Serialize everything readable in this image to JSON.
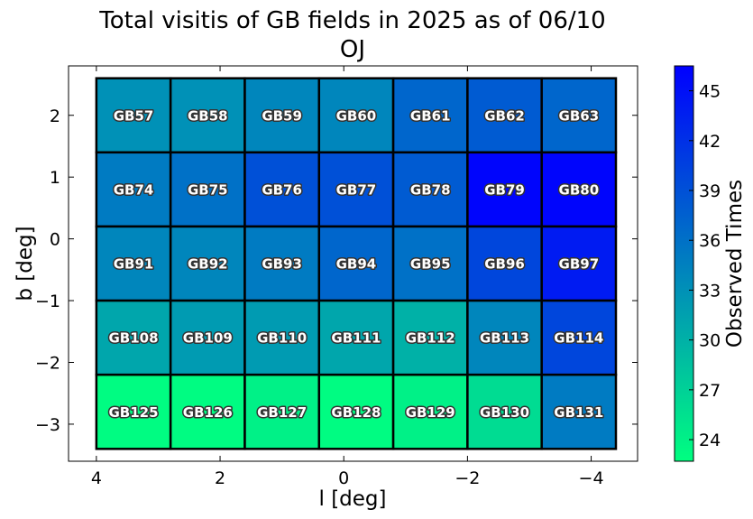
{
  "chart_data": {
    "type": "heatmap",
    "title": "Total visitis of GB fields in 2025 as of 06/10",
    "subtitle": "OJ",
    "xlabel": "l [deg]",
    "ylabel": "b [deg]",
    "xlim": [
      4.45,
      -4.75
    ],
    "ylim": [
      -3.6,
      2.8
    ],
    "x_ticks": [
      4,
      2,
      0,
      -2,
      -4
    ],
    "x_tick_labels": [
      "4",
      "2",
      "0",
      "−2",
      "−4"
    ],
    "y_ticks": [
      2,
      1,
      0,
      -1,
      -2,
      -3
    ],
    "y_tick_labels": [
      "2",
      "1",
      "0",
      "−1",
      "−2",
      "−3"
    ],
    "field_size_deg": [
      1.2,
      1.2
    ],
    "cells": [
      {
        "name": "GB57",
        "l": 3.4,
        "b": 2.0,
        "value": 33
      },
      {
        "name": "GB58",
        "l": 2.2,
        "b": 2.0,
        "value": 33
      },
      {
        "name": "GB59",
        "l": 1.0,
        "b": 2.0,
        "value": 34
      },
      {
        "name": "GB60",
        "l": -0.2,
        "b": 2.0,
        "value": 34
      },
      {
        "name": "GB61",
        "l": -1.4,
        "b": 2.0,
        "value": 37
      },
      {
        "name": "GB62",
        "l": -2.6,
        "b": 2.0,
        "value": 38
      },
      {
        "name": "GB63",
        "l": -3.8,
        "b": 2.0,
        "value": 37
      },
      {
        "name": "GB74",
        "l": 3.4,
        "b": 0.8,
        "value": 35
      },
      {
        "name": "GB75",
        "l": 2.2,
        "b": 0.8,
        "value": 36
      },
      {
        "name": "GB76",
        "l": 1.0,
        "b": 0.8,
        "value": 39
      },
      {
        "name": "GB77",
        "l": -0.2,
        "b": 0.8,
        "value": 39
      },
      {
        "name": "GB78",
        "l": -1.4,
        "b": 0.8,
        "value": 38
      },
      {
        "name": "GB79",
        "l": -2.6,
        "b": 0.8,
        "value": 46
      },
      {
        "name": "GB80",
        "l": -3.8,
        "b": 0.8,
        "value": 46
      },
      {
        "name": "GB91",
        "l": 3.4,
        "b": -0.4,
        "value": 34
      },
      {
        "name": "GB92",
        "l": 2.2,
        "b": -0.4,
        "value": 34
      },
      {
        "name": "GB93",
        "l": 1.0,
        "b": -0.4,
        "value": 35
      },
      {
        "name": "GB94",
        "l": -0.2,
        "b": -0.4,
        "value": 37
      },
      {
        "name": "GB95",
        "l": -1.4,
        "b": -0.4,
        "value": 36
      },
      {
        "name": "GB96",
        "l": -2.6,
        "b": -0.4,
        "value": 40
      },
      {
        "name": "GB97",
        "l": -3.8,
        "b": -0.4,
        "value": 44
      },
      {
        "name": "GB108",
        "l": 3.4,
        "b": -1.6,
        "value": 31
      },
      {
        "name": "GB109",
        "l": 2.2,
        "b": -1.6,
        "value": 32
      },
      {
        "name": "GB110",
        "l": 1.0,
        "b": -1.6,
        "value": 32
      },
      {
        "name": "GB111",
        "l": -0.2,
        "b": -1.6,
        "value": 31
      },
      {
        "name": "GB112",
        "l": -1.4,
        "b": -1.6,
        "value": 30
      },
      {
        "name": "GB113",
        "l": -2.6,
        "b": -1.6,
        "value": 34
      },
      {
        "name": "GB114",
        "l": -3.8,
        "b": -1.6,
        "value": 40
      },
      {
        "name": "GB125",
        "l": 3.4,
        "b": -2.8,
        "value": 23
      },
      {
        "name": "GB126",
        "l": 2.2,
        "b": -2.8,
        "value": 23
      },
      {
        "name": "GB127",
        "l": 1.0,
        "b": -2.8,
        "value": 24
      },
      {
        "name": "GB128",
        "l": -0.2,
        "b": -2.8,
        "value": 23
      },
      {
        "name": "GB129",
        "l": -1.4,
        "b": -2.8,
        "value": 24
      },
      {
        "name": "GB130",
        "l": -2.6,
        "b": -2.8,
        "value": 26
      },
      {
        "name": "GB131",
        "l": -3.8,
        "b": -2.8,
        "value": 35
      }
    ],
    "colorbar": {
      "label": "Observed Times",
      "vmin": 22.7,
      "vmax": 46.5,
      "ticks": [
        24,
        27,
        30,
        33,
        36,
        39,
        42,
        45
      ],
      "colormap": "winter_r",
      "color_low": "#00ff80",
      "color_high": "#0000ff"
    },
    "grid": false,
    "cell_edge_color": "#000000"
  }
}
